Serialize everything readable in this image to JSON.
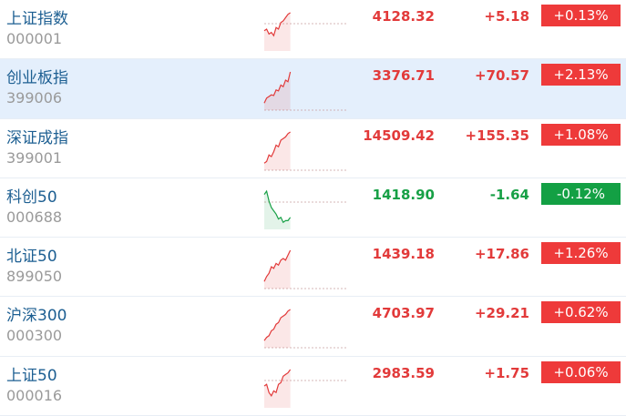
{
  "colors": {
    "up": "#e23a3a",
    "down": "#17a046",
    "name": "#1d5f92"
  },
  "rows": [
    {
      "name": "上证指数",
      "code": "000001",
      "price": "4128.32",
      "change": "+5.18",
      "pct": "+0.13%",
      "dir": "up",
      "spark": [
        0.45,
        0.5,
        0.35,
        0.4,
        0.3,
        0.55,
        0.5,
        0.7,
        0.75,
        0.85,
        0.95,
        1.0
      ]
    },
    {
      "name": "创业板指",
      "code": "399006",
      "price": "3376.71",
      "change": "+70.57",
      "pct": "+2.13%",
      "dir": "up",
      "selected": true,
      "spark": [
        0.05,
        0.2,
        0.25,
        0.3,
        0.28,
        0.45,
        0.42,
        0.6,
        0.55,
        0.75,
        0.7,
        1.0
      ]
    },
    {
      "name": "深证成指",
      "code": "399001",
      "price": "14509.42",
      "change": "+155.35",
      "pct": "+1.08%",
      "dir": "up",
      "spark": [
        0.05,
        0.1,
        0.3,
        0.25,
        0.4,
        0.6,
        0.55,
        0.75,
        0.8,
        0.85,
        0.95,
        1.0
      ]
    },
    {
      "name": "科创50",
      "code": "000688",
      "price": "1418.90",
      "change": "-1.64",
      "pct": "-0.12%",
      "dir": "down",
      "spark": [
        0.9,
        1.0,
        0.7,
        0.5,
        0.4,
        0.3,
        0.15,
        0.2,
        0.05,
        0.1,
        0.1,
        0.2
      ]
    },
    {
      "name": "北证50",
      "code": "899050",
      "price": "1439.18",
      "change": "+17.86",
      "pct": "+1.26%",
      "dir": "up",
      "spark": [
        0.05,
        0.2,
        0.3,
        0.5,
        0.45,
        0.6,
        0.55,
        0.7,
        0.75,
        0.7,
        0.85,
        1.0
      ]
    },
    {
      "name": "沪深300",
      "code": "000300",
      "price": "4703.97",
      "change": "+29.21",
      "pct": "+0.62%",
      "dir": "up",
      "spark": [
        0.05,
        0.15,
        0.2,
        0.35,
        0.4,
        0.55,
        0.6,
        0.75,
        0.8,
        0.85,
        0.95,
        1.0
      ]
    },
    {
      "name": "上证50",
      "code": "000016",
      "price": "2983.59",
      "change": "+1.75",
      "pct": "+0.06%",
      "dir": "up",
      "spark": [
        0.5,
        0.55,
        0.3,
        0.2,
        0.35,
        0.3,
        0.55,
        0.6,
        0.8,
        0.85,
        0.9,
        1.0
      ]
    }
  ]
}
